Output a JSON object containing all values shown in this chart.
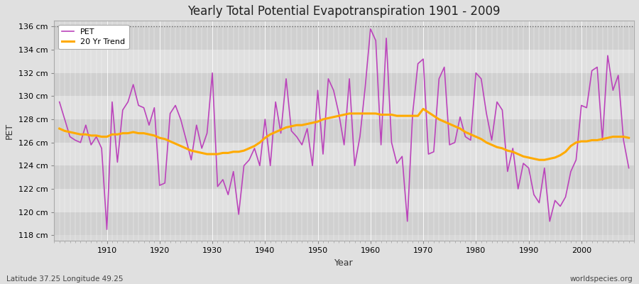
{
  "title": "Yearly Total Potential Evapotranspiration 1901 - 2009",
  "xlabel": "Year",
  "ylabel": "PET",
  "subtitle_left": "Latitude 37.25 Longitude 49.25",
  "subtitle_right": "worldspecies.org",
  "pet_color": "#bb44bb",
  "trend_color": "#ffaa00",
  "fig_bg_color": "#e0e0e0",
  "plot_bg_color": "#d8d8d8",
  "band_colors": [
    "#d0d0d0",
    "#e0e0e0"
  ],
  "ylim": [
    117.5,
    136.5
  ],
  "yticks": [
    118,
    120,
    122,
    124,
    126,
    128,
    130,
    132,
    134,
    136
  ],
  "xlim": [
    1900,
    2010
  ],
  "years": [
    1901,
    1902,
    1903,
    1904,
    1905,
    1906,
    1907,
    1908,
    1909,
    1910,
    1911,
    1912,
    1913,
    1914,
    1915,
    1916,
    1917,
    1918,
    1919,
    1920,
    1921,
    1922,
    1923,
    1924,
    1925,
    1926,
    1927,
    1928,
    1929,
    1930,
    1931,
    1932,
    1933,
    1934,
    1935,
    1936,
    1937,
    1938,
    1939,
    1940,
    1941,
    1942,
    1943,
    1944,
    1945,
    1946,
    1947,
    1948,
    1949,
    1950,
    1951,
    1952,
    1953,
    1954,
    1955,
    1956,
    1957,
    1958,
    1959,
    1960,
    1961,
    1962,
    1963,
    1964,
    1965,
    1966,
    1967,
    1968,
    1969,
    1970,
    1971,
    1972,
    1973,
    1974,
    1975,
    1976,
    1977,
    1978,
    1979,
    1980,
    1981,
    1982,
    1983,
    1984,
    1985,
    1986,
    1987,
    1988,
    1989,
    1990,
    1991,
    1992,
    1993,
    1994,
    1995,
    1996,
    1997,
    1998,
    1999,
    2000,
    2001,
    2002,
    2003,
    2004,
    2005,
    2006,
    2007,
    2008,
    2009
  ],
  "pet": [
    129.5,
    128.0,
    126.5,
    126.2,
    126.0,
    127.5,
    125.8,
    126.5,
    125.5,
    118.5,
    129.5,
    124.3,
    128.8,
    129.5,
    131.0,
    129.2,
    129.0,
    127.5,
    129.0,
    122.3,
    122.5,
    128.5,
    129.2,
    128.0,
    126.3,
    124.5,
    127.5,
    125.5,
    126.8,
    132.0,
    122.2,
    122.8,
    121.5,
    123.5,
    119.8,
    124.0,
    124.5,
    125.5,
    124.0,
    128.0,
    124.0,
    129.5,
    126.8,
    131.5,
    127.0,
    126.5,
    125.8,
    127.2,
    124.0,
    130.5,
    125.0,
    131.5,
    130.5,
    128.5,
    125.8,
    131.5,
    124.0,
    126.5,
    130.8,
    135.8,
    134.8,
    125.8,
    135.0,
    126.0,
    124.2,
    124.8,
    119.2,
    128.5,
    132.8,
    133.2,
    125.0,
    125.2,
    131.5,
    132.5,
    125.8,
    126.0,
    128.2,
    126.5,
    126.2,
    132.0,
    131.5,
    128.5,
    126.2,
    129.5,
    128.8,
    123.5,
    125.5,
    122.0,
    124.2,
    123.8,
    121.5,
    120.8,
    123.8,
    119.2,
    121.0,
    120.5,
    121.3,
    123.5,
    124.5,
    129.2,
    129.0,
    132.2,
    132.5,
    126.2,
    133.5,
    130.5,
    131.8,
    126.2,
    123.8
  ],
  "trend": [
    127.2,
    127.0,
    126.9,
    126.8,
    126.7,
    126.7,
    126.6,
    126.6,
    126.5,
    126.5,
    126.7,
    126.7,
    126.8,
    126.8,
    126.9,
    126.8,
    126.8,
    126.7,
    126.6,
    126.4,
    126.3,
    126.1,
    125.9,
    125.7,
    125.5,
    125.3,
    125.2,
    125.1,
    125.0,
    125.0,
    125.0,
    125.1,
    125.1,
    125.2,
    125.2,
    125.3,
    125.5,
    125.7,
    126.0,
    126.4,
    126.7,
    126.9,
    127.1,
    127.3,
    127.4,
    127.5,
    127.5,
    127.6,
    127.7,
    127.8,
    128.0,
    128.1,
    128.2,
    128.3,
    128.4,
    128.5,
    128.5,
    128.5,
    128.5,
    128.5,
    128.5,
    128.4,
    128.4,
    128.4,
    128.3,
    128.3,
    128.3,
    128.3,
    128.3,
    128.9,
    128.6,
    128.3,
    128.0,
    127.8,
    127.6,
    127.4,
    127.2,
    126.9,
    126.7,
    126.5,
    126.3,
    126.0,
    125.8,
    125.6,
    125.5,
    125.3,
    125.2,
    125.0,
    124.8,
    124.7,
    124.6,
    124.5,
    124.5,
    124.6,
    124.7,
    124.9,
    125.2,
    125.7,
    126.0,
    126.1,
    126.1,
    126.2,
    126.2,
    126.3,
    126.4,
    126.5,
    126.5,
    126.5,
    126.4
  ]
}
